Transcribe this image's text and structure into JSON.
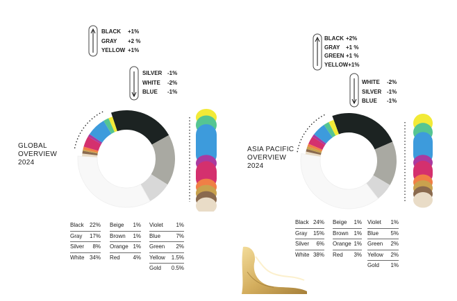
{
  "chart_data": [
    {
      "type": "donut",
      "title": "GLOBAL OVERVIEW 2024",
      "title_lines": [
        "GLOBAL",
        "OVERVIEW",
        "2024"
      ],
      "categories": [
        "Black",
        "Gray",
        "Silver",
        "White",
        "Beige",
        "Brown",
        "Orange",
        "Red",
        "Violet",
        "Blue",
        "Green",
        "Yellow",
        "Gold"
      ],
      "values": [
        22,
        17,
        8,
        34,
        1,
        1,
        1,
        4,
        1,
        7,
        2,
        1.5,
        0.5
      ],
      "table": [
        [
          {
            "name": "Black",
            "value": "22%"
          },
          {
            "name": "Gray",
            "value": "17%"
          },
          {
            "name": "Silver",
            "value": "8%"
          },
          {
            "name": "White",
            "value": "34%"
          }
        ],
        [
          {
            "name": "Beige",
            "value": "1%"
          },
          {
            "name": "Brown",
            "value": "1%"
          },
          {
            "name": "Orange",
            "value": "1%"
          },
          {
            "name": "Red",
            "value": "4%"
          }
        ],
        [
          {
            "name": "Violet",
            "value": "1%"
          },
          {
            "name": "Blue",
            "value": "7%"
          },
          {
            "name": "Green",
            "value": "2%"
          },
          {
            "name": "Yellow",
            "value": "1.5%"
          },
          {
            "name": "Gold",
            "value": "0.5%"
          }
        ]
      ],
      "changes_up": [
        {
          "name": "BLACK",
          "change": "+1%"
        },
        {
          "name": "GRAY",
          "change": "+2 %"
        },
        {
          "name": "YELLOW",
          "change": "+1%"
        }
      ],
      "changes_down": [
        {
          "name": "SILVER",
          "change": "-1%"
        },
        {
          "name": "WHITE",
          "change": "-2%"
        },
        {
          "name": "BLUE",
          "change": "-1%"
        }
      ]
    },
    {
      "type": "donut",
      "title": "ASIA PACIFIC OVERVIEW 2024",
      "title_lines": [
        "ASIA PACIFIC",
        "OVERVIEW",
        "2024"
      ],
      "categories": [
        "Black",
        "Gray",
        "Silver",
        "White",
        "Beige",
        "Brown",
        "Orange",
        "Red",
        "Violet",
        "Blue",
        "Green",
        "Yellow",
        "Gold"
      ],
      "values": [
        24,
        15,
        6,
        38,
        1,
        1,
        1,
        3,
        1,
        5,
        2,
        2,
        1
      ],
      "table": [
        [
          {
            "name": "Black",
            "value": "24%"
          },
          {
            "name": "Gray",
            "value": "15%"
          },
          {
            "name": "Silver",
            "value": "6%"
          },
          {
            "name": "White",
            "value": "38%"
          }
        ],
        [
          {
            "name": "Beige",
            "value": "1%"
          },
          {
            "name": "Brown",
            "value": "1%"
          },
          {
            "name": "Orange",
            "value": "1%"
          },
          {
            "name": "Red",
            "value": "3%"
          }
        ],
        [
          {
            "name": "Violet",
            "value": "1%"
          },
          {
            "name": "Blue",
            "value": "5%"
          },
          {
            "name": "Green",
            "value": "2%"
          },
          {
            "name": "Yellow",
            "value": "2%"
          },
          {
            "name": "Gold",
            "value": "1%"
          }
        ]
      ],
      "changes_up": [
        {
          "name": "BLACK",
          "change": "+2%"
        },
        {
          "name": "GRAY",
          "change": "+1 %"
        },
        {
          "name": "GREEN",
          "change": "+1 %"
        },
        {
          "name": "YELLOW",
          "change": "+1%"
        }
      ],
      "changes_down": [
        {
          "name": "WHITE",
          "change": "-2%"
        },
        {
          "name": "SILVER",
          "change": "-1%"
        },
        {
          "name": "BLUE",
          "change": "-1%"
        }
      ]
    }
  ],
  "colors": {
    "Black": "#1c2322",
    "Gray": "#a9a9a2",
    "Silver": "#d8d8d8",
    "White": "#f8f8f8",
    "Beige": "#e9dcc7",
    "Brown": "#8a6a4e",
    "Orange": "#f07f46",
    "Red": "#d4306e",
    "Violet": "#a93aa0",
    "Blue": "#3d9bdc",
    "Green": "#55c592",
    "Yellow": "#f2ea37",
    "Gold": "#c9a24e"
  },
  "icons": {
    "arrow_up": "up-arrow-icon",
    "arrow_down": "down-arrow-icon",
    "decor": "gold-fabric-icon"
  }
}
